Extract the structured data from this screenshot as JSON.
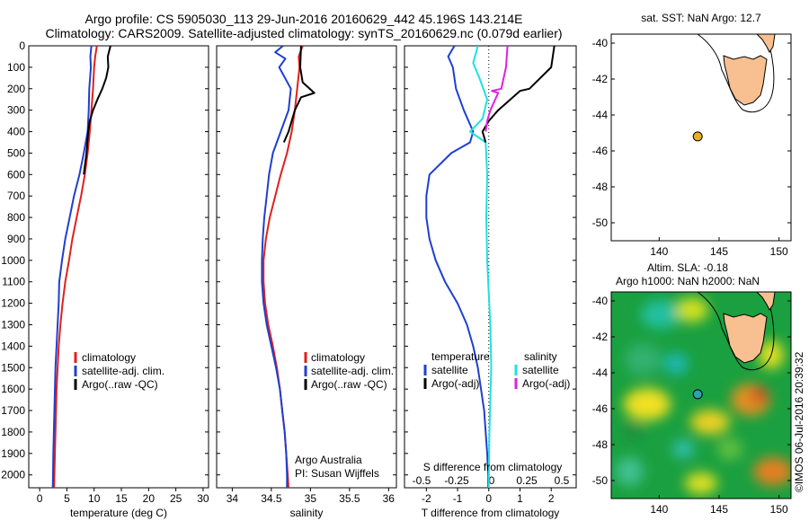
{
  "header": {
    "line1": "Argo profile: CS 5905030_113 29-Jun-2016 20160629_442 45.196S 143.214E",
    "line2": "Climatology: CARS2009. Satellite-adjusted climatology: synTS_20160629.nc (0.079d earlier)"
  },
  "footer": {
    "credit": "©IMOS 06-Jul-2016 20:39:32"
  },
  "chart_data": [
    {
      "type": "line",
      "name_id": "temperature",
      "xlabel": "temperature (deg C)",
      "xlim": [
        -2,
        31
      ],
      "xticks": [
        0,
        5,
        10,
        15,
        20,
        25,
        30
      ],
      "xtick_labels": [
        "0",
        "5",
        "10",
        "15",
        "20",
        "25",
        "30"
      ],
      "ylim": [
        0,
        2060
      ],
      "yticks": [
        0,
        100,
        200,
        300,
        400,
        500,
        600,
        700,
        800,
        900,
        1000,
        1100,
        1200,
        1300,
        1400,
        1500,
        1600,
        1700,
        1800,
        1900,
        2000
      ],
      "ytick_labels": [
        "0",
        "100",
        "200",
        "300",
        "400",
        "500",
        "600",
        "700",
        "800",
        "900",
        "1000",
        "1100",
        "1200",
        "1300",
        "1400",
        "1500",
        "1600",
        "1700",
        "1800",
        "1900",
        "2000"
      ],
      "legend": [
        "climatology",
        "satellite-adj. clim.",
        "Argo(..raw -QC)"
      ],
      "legend_colors": [
        "#e0201b",
        "#1f3fd0",
        "#000000"
      ],
      "series": [
        {
          "color": "#e0201b",
          "points": [
            [
              10.5,
              0
            ],
            [
              10.2,
              50
            ],
            [
              10.0,
              100
            ],
            [
              9.8,
              200
            ],
            [
              9.5,
              300
            ],
            [
              9.2,
              400
            ],
            [
              8.8,
              500
            ],
            [
              8.3,
              600
            ],
            [
              7.6,
              700
            ],
            [
              6.8,
              800
            ],
            [
              6.0,
              900
            ],
            [
              5.4,
              1000
            ],
            [
              4.7,
              1100
            ],
            [
              4.2,
              1200
            ],
            [
              3.8,
              1300
            ],
            [
              3.5,
              1400
            ],
            [
              3.3,
              1500
            ],
            [
              3.1,
              1600
            ],
            [
              3.0,
              1700
            ],
            [
              2.9,
              1800
            ],
            [
              2.8,
              1900
            ],
            [
              2.7,
              2000
            ],
            [
              2.65,
              2060
            ]
          ]
        },
        {
          "color": "#1f3fd0",
          "points": [
            [
              9.5,
              0
            ],
            [
              9.3,
              50
            ],
            [
              9.4,
              100
            ],
            [
              9.1,
              200
            ],
            [
              9.0,
              300
            ],
            [
              8.8,
              400
            ],
            [
              8.1,
              500
            ],
            [
              7.3,
              600
            ],
            [
              6.3,
              700
            ],
            [
              5.5,
              800
            ],
            [
              4.7,
              900
            ],
            [
              4.1,
              1000
            ],
            [
              3.6,
              1100
            ],
            [
              3.5,
              1200
            ],
            [
              3.3,
              1300
            ],
            [
              3.1,
              1400
            ],
            [
              2.9,
              1500
            ],
            [
              2.8,
              1600
            ],
            [
              2.7,
              1700
            ],
            [
              2.6,
              1800
            ],
            [
              2.5,
              1900
            ],
            [
              2.45,
              2000
            ],
            [
              2.4,
              2060
            ]
          ]
        },
        {
          "color": "#000000",
          "points": [
            [
              13.0,
              0
            ],
            [
              12.5,
              50
            ],
            [
              12.6,
              100
            ],
            [
              12.2,
              150
            ],
            [
              11.5,
              200
            ],
            [
              10.6,
              250
            ],
            [
              9.8,
              300
            ],
            [
              9.2,
              350
            ],
            [
              8.9,
              400
            ],
            [
              8.6,
              500
            ],
            [
              8.1,
              600
            ]
          ]
        }
      ]
    },
    {
      "type": "line",
      "name_id": "salinity",
      "xlabel": "salinity",
      "xlim": [
        33.8,
        36.1
      ],
      "xticks": [
        34,
        34.5,
        35,
        35.5,
        36
      ],
      "xtick_labels": [
        "34",
        "34.5",
        "35",
        "35.5",
        "36"
      ],
      "ylim": [
        0,
        2060
      ],
      "legend": [
        "climatology",
        "satellite-adj. clim.",
        "Argo(..raw -QC)"
      ],
      "legend_colors": [
        "#e0201b",
        "#1f3fd0",
        "#000000"
      ],
      "annotation": [
        "Argo Australia",
        "PI: Susan Wijffels"
      ],
      "series": [
        {
          "color": "#e0201b",
          "points": [
            [
              34.9,
              0
            ],
            [
              34.85,
              50
            ],
            [
              34.86,
              100
            ],
            [
              34.83,
              200
            ],
            [
              34.8,
              300
            ],
            [
              34.76,
              400
            ],
            [
              34.7,
              500
            ],
            [
              34.62,
              600
            ],
            [
              34.55,
              700
            ],
            [
              34.48,
              800
            ],
            [
              34.43,
              900
            ],
            [
              34.4,
              1000
            ],
            [
              34.4,
              1100
            ],
            [
              34.42,
              1200
            ],
            [
              34.46,
              1300
            ],
            [
              34.52,
              1400
            ],
            [
              34.57,
              1500
            ],
            [
              34.61,
              1600
            ],
            [
              34.64,
              1700
            ],
            [
              34.67,
              1800
            ],
            [
              34.69,
              1900
            ],
            [
              34.71,
              2000
            ],
            [
              34.72,
              2060
            ]
          ]
        },
        {
          "color": "#1f3fd0",
          "points": [
            [
              34.65,
              0
            ],
            [
              34.55,
              30
            ],
            [
              34.68,
              60
            ],
            [
              34.6,
              100
            ],
            [
              34.75,
              200
            ],
            [
              34.72,
              300
            ],
            [
              34.62,
              400
            ],
            [
              34.52,
              500
            ],
            [
              34.47,
              600
            ],
            [
              34.44,
              700
            ],
            [
              34.41,
              800
            ],
            [
              34.39,
              900
            ],
            [
              34.38,
              1000
            ],
            [
              34.38,
              1100
            ],
            [
              34.4,
              1200
            ],
            [
              34.44,
              1300
            ],
            [
              34.5,
              1400
            ],
            [
              34.56,
              1500
            ],
            [
              34.61,
              1600
            ],
            [
              34.64,
              1700
            ],
            [
              34.67,
              1800
            ],
            [
              34.69,
              1900
            ],
            [
              34.7,
              2000
            ],
            [
              34.7,
              2060
            ]
          ]
        },
        {
          "color": "#000000",
          "points": [
            [
              34.88,
              0
            ],
            [
              34.87,
              100
            ],
            [
              34.9,
              170
            ],
            [
              35.05,
              220
            ],
            [
              34.88,
              240
            ],
            [
              34.8,
              300
            ],
            [
              34.72,
              400
            ],
            [
              34.66,
              450
            ]
          ]
        }
      ]
    },
    {
      "type": "line",
      "name_id": "difference",
      "xlabel": "T difference from climatology",
      "xlim": [
        -2.7,
        2.8
      ],
      "xticks": [
        -2,
        -1,
        0,
        1,
        2
      ],
      "xtick_labels": [
        "-2",
        "-1",
        "0",
        "1",
        "2"
      ],
      "top_title": "S difference from climatology",
      "top_ticks": [
        -0.5,
        -0.25,
        0,
        0.25,
        0.5
      ],
      "top_tick_labels": [
        "-0.5",
        "-0.25",
        "0",
        "0.25",
        "0.5"
      ],
      "ylim": [
        0,
        2060
      ],
      "legend_headers": [
        "temperature",
        "salinity"
      ],
      "legend": [
        "satellite",
        "Argo(-adj)",
        "satellite",
        "Argo(-adj)"
      ],
      "legend_colors": [
        "#1f3fd0",
        "#000000",
        "#20e0e0",
        "#e020e0"
      ],
      "series": [
        {
          "color": "#1f3fd0",
          "points": [
            [
              -1.1,
              0
            ],
            [
              -1.3,
              50
            ],
            [
              -1.15,
              100
            ],
            [
              -1.05,
              200
            ],
            [
              -0.8,
              300
            ],
            [
              -0.5,
              400
            ],
            [
              -0.6,
              450
            ],
            [
              -1.2,
              500
            ],
            [
              -1.9,
              600
            ],
            [
              -2.0,
              700
            ],
            [
              -2.0,
              800
            ],
            [
              -1.9,
              900
            ],
            [
              -1.7,
              1000
            ],
            [
              -1.4,
              1100
            ],
            [
              -1.0,
              1200
            ],
            [
              -0.7,
              1300
            ],
            [
              -0.5,
              1400
            ],
            [
              -0.35,
              1500
            ],
            [
              -0.25,
              1600
            ],
            [
              -0.15,
              1700
            ],
            [
              -0.1,
              1800
            ],
            [
              -0.05,
              1900
            ],
            [
              -0.02,
              2000
            ],
            [
              -0.02,
              2060
            ]
          ]
        },
        {
          "color": "#20e0e0",
          "points": [
            [
              -0.35,
              0
            ],
            [
              -0.5,
              80
            ],
            [
              -0.3,
              150
            ],
            [
              -0.05,
              250
            ],
            [
              -0.2,
              340
            ],
            [
              -0.6,
              400
            ],
            [
              -0.1,
              450
            ],
            [
              -0.05,
              600
            ],
            [
              -0.08,
              800
            ],
            [
              -0.05,
              1000
            ],
            [
              -0.02,
              1100
            ],
            [
              0.05,
              1300
            ],
            [
              0.08,
              1500
            ],
            [
              0.06,
              1600
            ],
            [
              0.04,
              1700
            ],
            [
              0.02,
              1800
            ],
            [
              0.01,
              1900
            ],
            [
              0,
              2000
            ],
            [
              0,
              2060
            ]
          ]
        },
        {
          "color": "#000000",
          "points": [
            [
              2.1,
              0
            ],
            [
              2.0,
              100
            ],
            [
              1.3,
              200
            ],
            [
              1.0,
              210
            ],
            [
              0.3,
              300
            ],
            [
              0.0,
              350
            ],
            [
              -0.2,
              400
            ],
            [
              -0.1,
              450
            ]
          ]
        },
        {
          "color": "#e020e0",
          "points": [
            [
              0.6,
              0
            ],
            [
              0.55,
              100
            ],
            [
              0.4,
              200
            ],
            [
              0.1,
              210
            ],
            [
              0.3,
              220
            ],
            [
              0.05,
              300
            ],
            [
              -0.05,
              350
            ],
            [
              -0.1,
              400
            ]
          ]
        }
      ]
    },
    {
      "type": "scatter",
      "name_id": "sst-map",
      "title": "sat. SST: NaN Argo: 12.7",
      "xlim": [
        136,
        151
      ],
      "ylim": [
        -51,
        -39.5
      ],
      "xticks": [
        140,
        145,
        150
      ],
      "xtick_labels": [
        "140",
        "145",
        "150"
      ],
      "yticks": [
        -40,
        -42,
        -44,
        -46,
        -48,
        -50
      ],
      "ytick_labels": [
        "-40",
        "-42",
        "-44",
        "-46",
        "-48",
        "-50"
      ],
      "marker": {
        "lon": 143.214,
        "lat": -45.196,
        "color": "#e8b020"
      },
      "land_color": "#f8c090"
    },
    {
      "type": "heatmap",
      "name_id": "sla-map",
      "title_line1": "Altim. SLA: -0.18",
      "title_line2": "Argo h1000: NaN h2000: NaN",
      "xlim": [
        136,
        151
      ],
      "ylim": [
        -51,
        -39.5
      ],
      "xticks": [
        140,
        145,
        150
      ],
      "xtick_labels": [
        "140",
        "145",
        "150"
      ],
      "yticks": [
        -40,
        -42,
        -44,
        -46,
        -48,
        -50
      ],
      "ytick_labels": [
        "-40",
        "-42",
        "-44",
        "-46",
        "-48",
        "-50"
      ],
      "marker": {
        "lon": 143.214,
        "lat": -45.196,
        "color": "#30a0b0"
      },
      "land_color": "#f8c090"
    }
  ]
}
